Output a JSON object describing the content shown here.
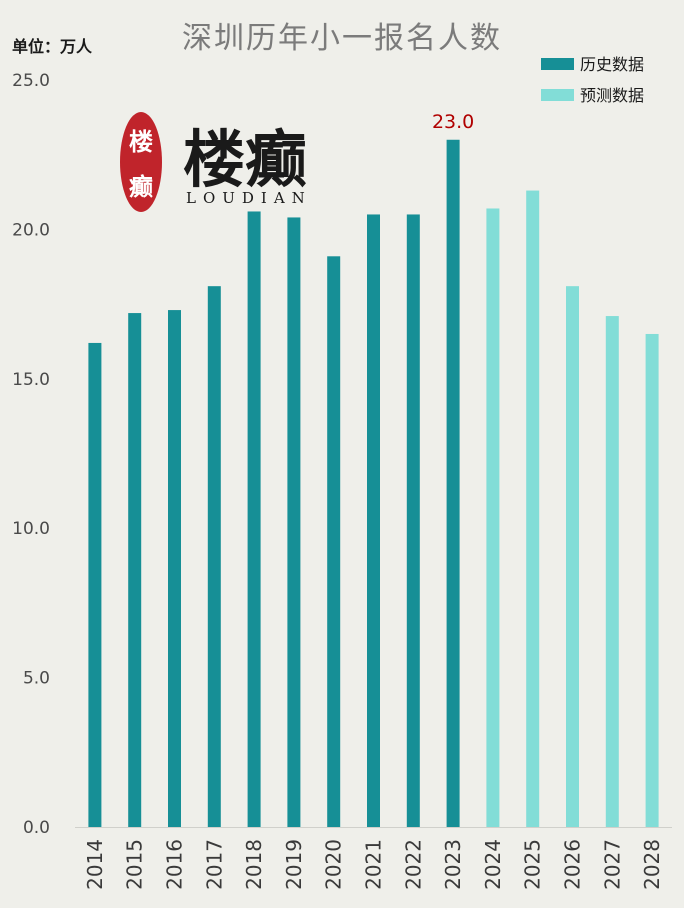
{
  "colors": {
    "historical": "#168f96",
    "forecast": "#82ddd7",
    "label_highlight": "#b00000",
    "seal": "#c0242b"
  },
  "logo": {
    "wordmark": "楼癫",
    "subtitle": "LOUDIAN",
    "seal_chars": [
      "楼",
      "癫"
    ]
  },
  "chart_data": {
    "type": "bar",
    "title": "深圳历年小一报名人数",
    "unit_label": "单位：万人",
    "ylim": [
      0,
      25
    ],
    "yticks": [
      "0.0",
      "5.0",
      "10.0",
      "15.0",
      "20.0",
      "25.0"
    ],
    "grid": false,
    "legend_position": "top-right",
    "categories": [
      "2014",
      "2015",
      "2016",
      "2017",
      "2018",
      "2019",
      "2020",
      "2021",
      "2022",
      "2023",
      "2024",
      "2025",
      "2026",
      "2027",
      "2028"
    ],
    "series": [
      {
        "name": "历史数据",
        "color": "#168f96",
        "values": [
          16.2,
          17.2,
          17.3,
          18.1,
          20.6,
          20.4,
          19.1,
          20.5,
          20.5,
          23.0,
          null,
          null,
          null,
          null,
          null
        ]
      },
      {
        "name": "预测数据",
        "color": "#82ddd7",
        "values": [
          null,
          null,
          null,
          null,
          null,
          null,
          null,
          null,
          null,
          null,
          20.7,
          21.3,
          18.1,
          17.1,
          16.5
        ]
      }
    ],
    "annotations": [
      {
        "category": "2023",
        "text": "23.0"
      }
    ]
  }
}
